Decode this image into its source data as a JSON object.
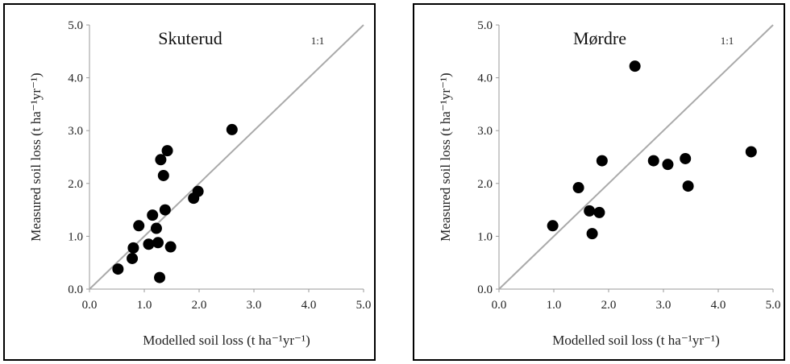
{
  "chart_data": [
    {
      "type": "scatter",
      "title": "Skuterud",
      "xlabel": "Modelled soil loss (t ha⁻¹yr⁻¹)",
      "ylabel": "Measured soil loss (t ha⁻¹yr⁻¹)",
      "xlim": [
        0,
        5
      ],
      "ylim": [
        0,
        5
      ],
      "xticks": [
        "0.0",
        "1.0",
        "2.0",
        "3.0",
        "4.0",
        "5.0"
      ],
      "yticks": [
        "0.0",
        "1.0",
        "2.0",
        "3.0",
        "4.0",
        "5.0"
      ],
      "reference_line_label": "1:1",
      "grid": false,
      "marker_color": "#000000",
      "line_color": "#aaaaaa",
      "points": [
        {
          "x": 0.52,
          "y": 0.38
        },
        {
          "x": 0.78,
          "y": 0.58
        },
        {
          "x": 0.8,
          "y": 0.78
        },
        {
          "x": 0.9,
          "y": 1.2
        },
        {
          "x": 1.08,
          "y": 0.85
        },
        {
          "x": 1.15,
          "y": 1.4
        },
        {
          "x": 1.22,
          "y": 1.15
        },
        {
          "x": 1.25,
          "y": 0.88
        },
        {
          "x": 1.28,
          "y": 0.22
        },
        {
          "x": 1.3,
          "y": 2.45
        },
        {
          "x": 1.35,
          "y": 2.15
        },
        {
          "x": 1.38,
          "y": 1.5
        },
        {
          "x": 1.42,
          "y": 2.62
        },
        {
          "x": 1.48,
          "y": 0.8
        },
        {
          "x": 1.9,
          "y": 1.72
        },
        {
          "x": 1.98,
          "y": 1.85
        },
        {
          "x": 2.6,
          "y": 3.02
        }
      ]
    },
    {
      "type": "scatter",
      "title": "Mørdre",
      "xlabel": "Modelled soil loss (t ha⁻¹yr⁻¹)",
      "ylabel": "Measured soil loss (t ha⁻¹yr⁻¹)",
      "xlim": [
        0,
        5
      ],
      "ylim": [
        0,
        5
      ],
      "xticks": [
        "0.0",
        "1.0",
        "2.0",
        "3.0",
        "4.0",
        "5.0"
      ],
      "yticks": [
        "0.0",
        "1.0",
        "2.0",
        "3.0",
        "4.0",
        "5.0"
      ],
      "reference_line_label": "1:1",
      "grid": false,
      "marker_color": "#000000",
      "line_color": "#aaaaaa",
      "points": [
        {
          "x": 0.98,
          "y": 1.2
        },
        {
          "x": 1.45,
          "y": 1.92
        },
        {
          "x": 1.65,
          "y": 1.48
        },
        {
          "x": 1.7,
          "y": 1.05
        },
        {
          "x": 1.83,
          "y": 1.45
        },
        {
          "x": 1.88,
          "y": 2.43
        },
        {
          "x": 2.48,
          "y": 4.22
        },
        {
          "x": 2.82,
          "y": 2.43
        },
        {
          "x": 3.08,
          "y": 2.36
        },
        {
          "x": 3.4,
          "y": 2.47
        },
        {
          "x": 3.45,
          "y": 1.95
        },
        {
          "x": 4.6,
          "y": 2.6
        }
      ]
    }
  ]
}
